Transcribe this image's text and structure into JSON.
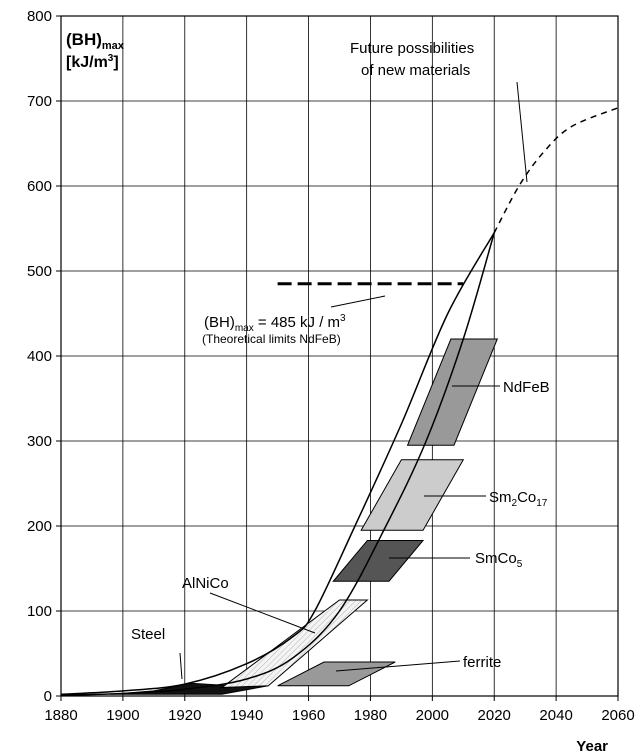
{
  "chart_data": {
    "type": "line",
    "title": "",
    "xlabel": "Year",
    "ylabel": {
      "main": "(BH)",
      "sub": "max",
      "unit_base": "[kJ/m",
      "unit_sup": "3",
      "unit_close": "]"
    },
    "xlim": [
      1880,
      2060
    ],
    "ylim": [
      0,
      800
    ],
    "x_ticks": [
      1880,
      1900,
      1920,
      1940,
      1960,
      1980,
      2000,
      2020,
      2040,
      2060
    ],
    "y_ticks": [
      0,
      100,
      200,
      300,
      400,
      500,
      600,
      700,
      800
    ],
    "grid": true,
    "upper_envelope": {
      "points": [
        [
          1880,
          2
        ],
        [
          1900,
          6
        ],
        [
          1920,
          14
        ],
        [
          1940,
          38
        ],
        [
          1955,
          70
        ],
        [
          1962,
          100
        ],
        [
          1975,
          200
        ],
        [
          1990,
          320
        ],
        [
          2005,
          450
        ],
        [
          2020,
          545
        ]
      ]
    },
    "lower_envelope": {
      "points": [
        [
          1880,
          1
        ],
        [
          1900,
          3
        ],
        [
          1920,
          8
        ],
        [
          1940,
          20
        ],
        [
          1955,
          45
        ],
        [
          1970,
          100
        ],
        [
          1985,
          200
        ],
        [
          1998,
          300
        ],
        [
          2010,
          420
        ],
        [
          2020,
          545
        ]
      ]
    },
    "future_projection": {
      "label_line1": "Future possibilities",
      "label_line2": "of new materials",
      "points": [
        [
          2020,
          545
        ],
        [
          2028,
          600
        ],
        [
          2036,
          640
        ],
        [
          2045,
          670
        ],
        [
          2060,
          692
        ]
      ]
    },
    "theoretical_limit": {
      "value": 485,
      "x_range": [
        1950,
        2010
      ],
      "label_base": "(BH)",
      "label_sub": "max",
      "label_value": " = 485 kJ / m",
      "label_sup": "3",
      "label_note": "(Theoretical limits NdFeB)"
    },
    "regions": [
      {
        "name": "Steel",
        "color": "#111111",
        "polygon": [
          [
            1896,
            2
          ],
          [
            1910,
            6
          ],
          [
            1922,
            15
          ],
          [
            1935,
            12
          ],
          [
            1947,
            12
          ],
          [
            1932,
            2
          ]
        ],
        "label_parts": [
          [
            "Steel",
            ""
          ]
        ]
      },
      {
        "name": "AlNiCo",
        "color": "#e6e6e6",
        "polygon": [
          [
            1932,
            10
          ],
          [
            1947,
            12
          ],
          [
            1979,
            113
          ],
          [
            1970,
            113
          ]
        ],
        "label_parts": [
          [
            "AlNiCo",
            ""
          ]
        ]
      },
      {
        "name": "ferrite",
        "color": "#999999",
        "polygon": [
          [
            1950,
            12
          ],
          [
            1965,
            40
          ],
          [
            1988,
            40
          ],
          [
            1973,
            12
          ]
        ],
        "label_parts": [
          [
            "ferrite",
            ""
          ]
        ]
      },
      {
        "name": "SmCo5",
        "color": "#555555",
        "polygon": [
          [
            1968,
            135
          ],
          [
            1979,
            183
          ],
          [
            1997,
            183
          ],
          [
            1986,
            135
          ]
        ],
        "label_parts": [
          [
            "SmCo",
            ""
          ],
          [
            "5",
            "sub"
          ]
        ]
      },
      {
        "name": "Sm2Co17",
        "color": "#cccccc",
        "polygon": [
          [
            1977,
            195
          ],
          [
            1990,
            278
          ],
          [
            2010,
            278
          ],
          [
            1997,
            195
          ]
        ],
        "label_parts": [
          [
            "Sm",
            ""
          ],
          [
            "2",
            "sub"
          ],
          [
            "Co",
            ""
          ],
          [
            "17",
            "sub"
          ]
        ]
      },
      {
        "name": "NdFeB",
        "color": "#999999",
        "polygon": [
          [
            1992,
            295
          ],
          [
            2006,
            420
          ],
          [
            2021,
            420
          ],
          [
            2007,
            295
          ]
        ],
        "label_parts": [
          [
            "NdFeB",
            ""
          ]
        ]
      }
    ]
  }
}
